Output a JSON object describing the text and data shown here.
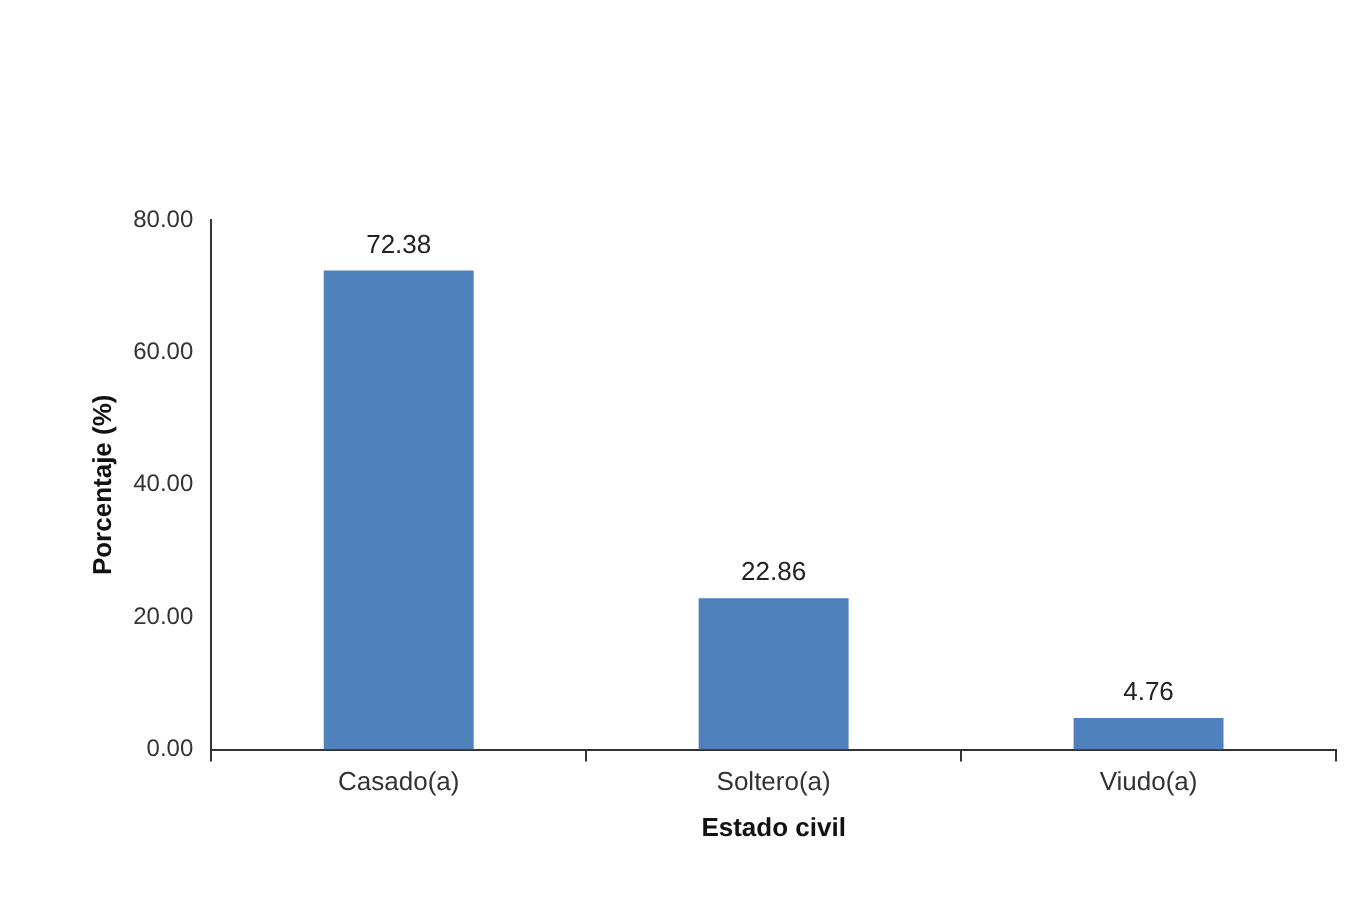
{
  "chart_data": {
    "type": "bar",
    "xlabel": "Estado civil",
    "ylabel": "Porcentaje (%)",
    "categories": [
      "Casado(a)",
      "Soltero(a)",
      "Viudo(a)"
    ],
    "values": [
      72.38,
      22.86,
      4.76
    ],
    "color": "#4f81bd",
    "ylim": [
      0,
      80
    ],
    "yticks": [
      {
        "value": 0,
        "label": "0.00"
      },
      {
        "value": 20,
        "label": "20.00"
      },
      {
        "value": 40,
        "label": "40.00"
      },
      {
        "value": 60,
        "label": "60.00"
      },
      {
        "value": 80,
        "label": "80.00"
      }
    ],
    "data_labels": true,
    "grid": false,
    "legend": false
  }
}
